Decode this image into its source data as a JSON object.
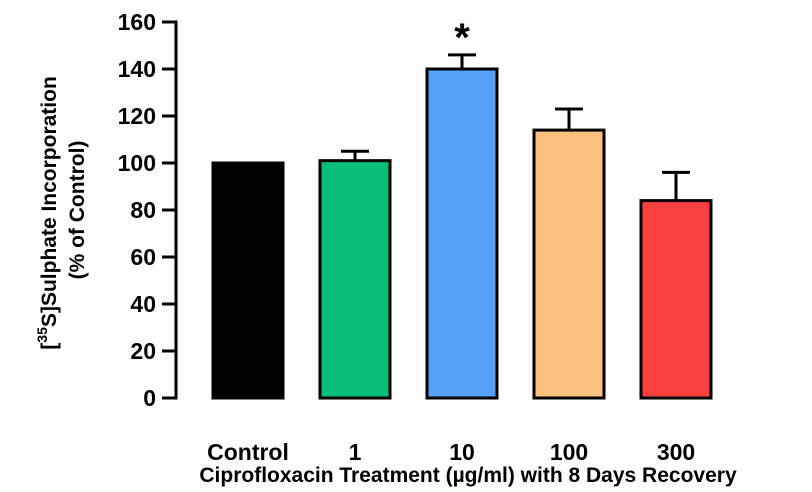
{
  "chart_data": {
    "type": "bar",
    "categories": [
      "Control",
      "1",
      "10",
      "100",
      "300"
    ],
    "values": [
      100,
      101,
      140,
      114,
      84
    ],
    "errors": [
      0,
      4,
      6,
      9,
      12
    ],
    "colors": [
      "#000000",
      "#07bf78",
      "#559ff9",
      "#fcc07f",
      "#f94141"
    ],
    "ylim": [
      0,
      160
    ],
    "yticks": [
      0,
      20,
      40,
      60,
      80,
      100,
      120,
      140,
      160
    ],
    "ylabel_line1": "[35S]Sulphate Incorporation",
    "ylabel_line2": "(% of Control)",
    "xlabel": "Ciprofloxacin Treatment (µg/ml) with 8 Days Recovery",
    "annotations": [
      {
        "category": "10",
        "text": "*"
      }
    ]
  }
}
